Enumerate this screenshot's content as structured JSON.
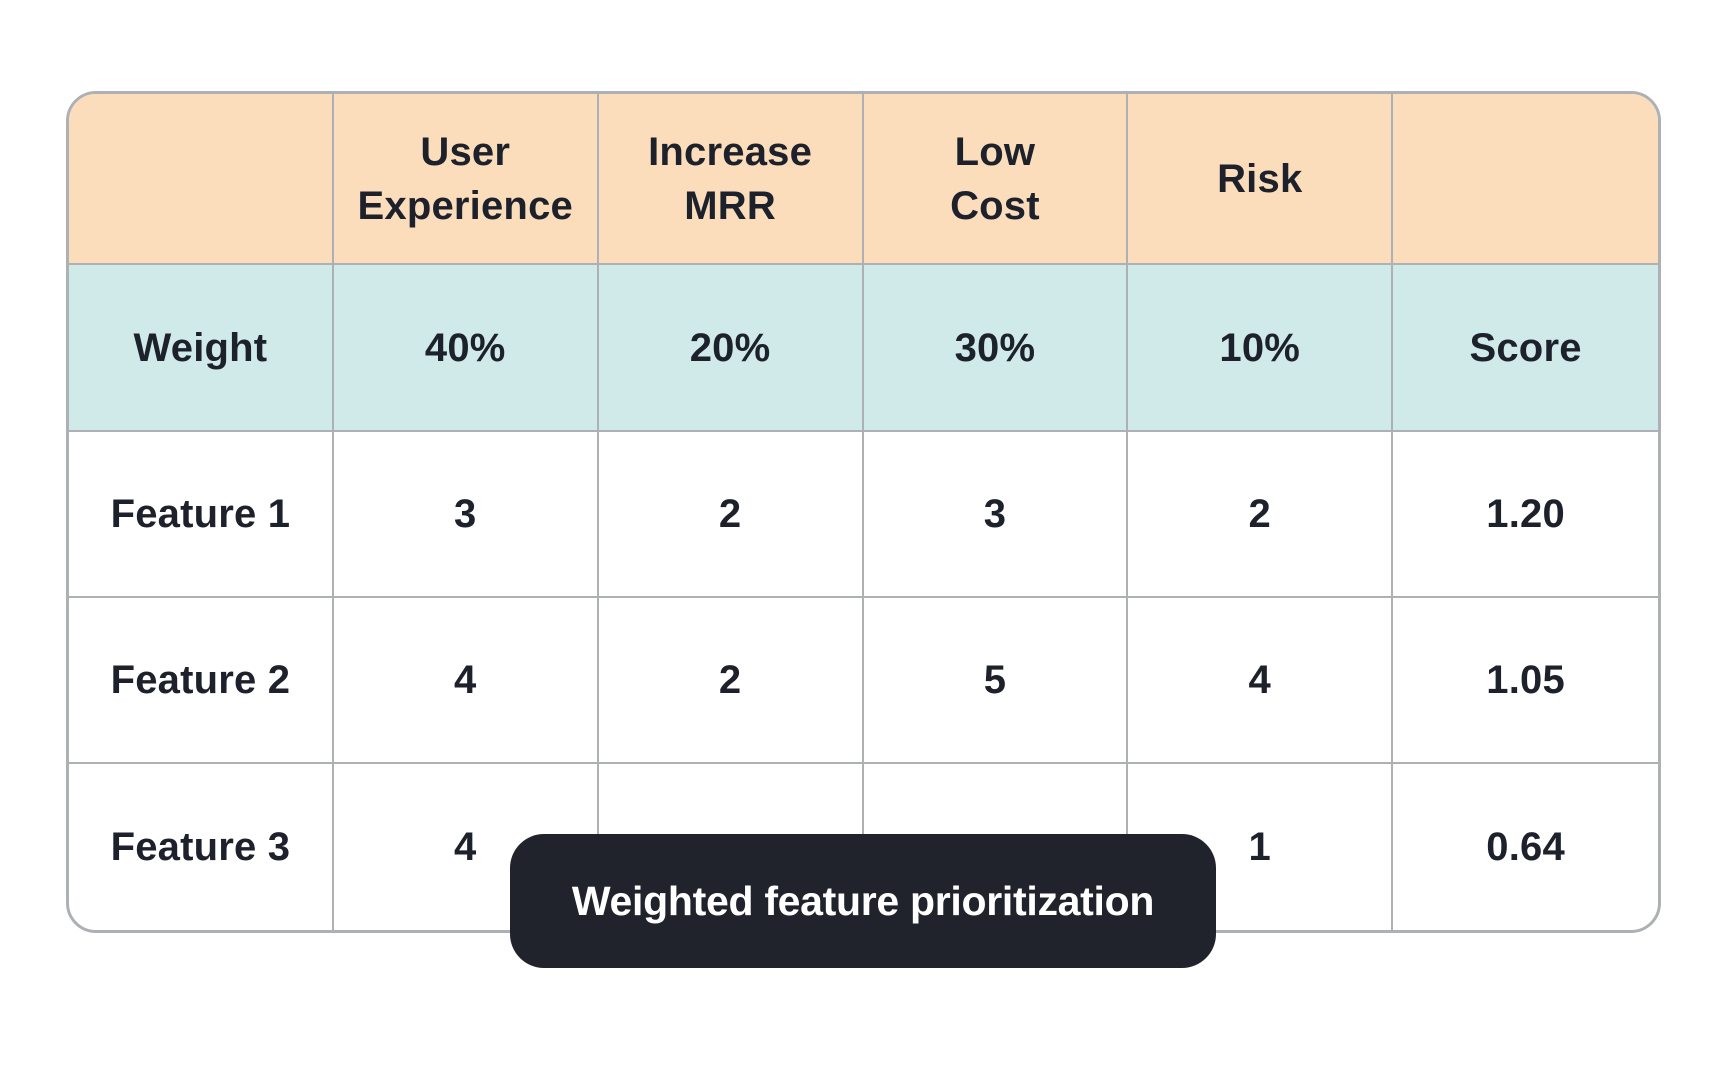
{
  "chart_data": {
    "type": "table",
    "caption": "Weighted feature prioritization",
    "header_row": [
      "",
      "User\nExperience",
      "Increase\nMRR",
      "Low\nCost",
      "Risk",
      ""
    ],
    "weight_row": [
      "Weight",
      "40%",
      "20%",
      "30%",
      "10%",
      "Score"
    ],
    "data_rows": [
      [
        "Feature 1",
        "3",
        "2",
        "3",
        "2",
        "1.20"
      ],
      [
        "Feature 2",
        "4",
        "2",
        "5",
        "4",
        "1.05"
      ],
      [
        "Feature 3",
        "4",
        "",
        "",
        "1",
        "0.64"
      ]
    ]
  },
  "tooltip": {
    "label": "Weighted feature prioritization"
  },
  "theme": {
    "page-bg": "#ffffff",
    "header-bg": "#fbdcbb",
    "weight-bg": "#cfeae8",
    "grid-border": "#aeb1b4",
    "ink": "#1d212c",
    "tooltip-bg": "#20232c",
    "tooltip-text": "#ffffff"
  }
}
